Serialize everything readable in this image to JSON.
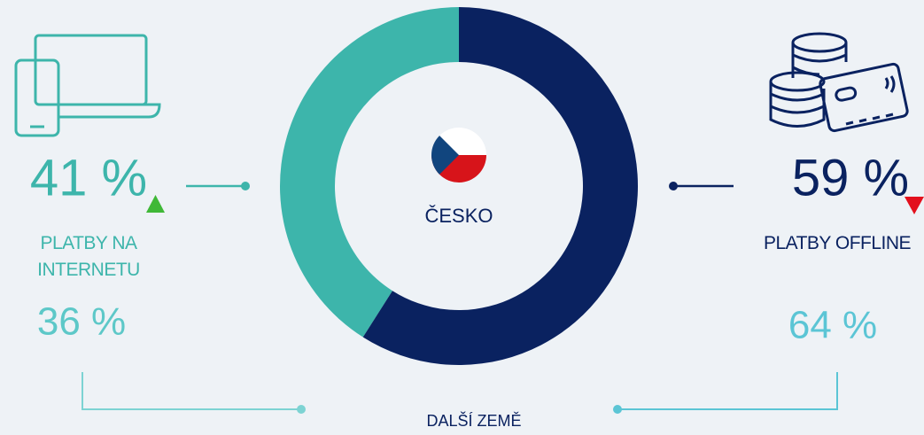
{
  "chart_data": {
    "type": "pie",
    "donut": true,
    "center_label": "ČESKO",
    "categories": [
      "PLATBY NA INTERNETU",
      "PLATBY OFFLINE"
    ],
    "values": [
      41,
      59
    ],
    "value_labels": [
      "41 %",
      "59 %"
    ],
    "colors": [
      "#3db5ab",
      "#0a2260"
    ],
    "trends": [
      "up",
      "down"
    ],
    "comparison": {
      "label": "DALŠÍ ZEMĚ",
      "values": [
        36,
        64
      ],
      "value_labels": [
        "36 %",
        "64 %"
      ]
    }
  }
}
